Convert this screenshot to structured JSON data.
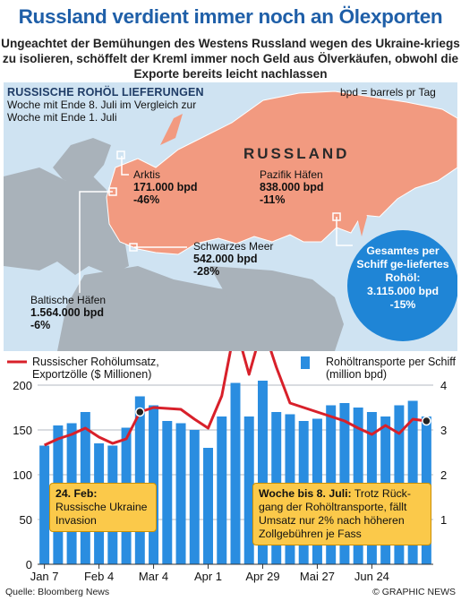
{
  "title": "Russland verdient immer noch an Ölexporten",
  "subtitle": "Ungeachtet der Bemühungen des Westens Russland wegen des Ukraine-kriegs zu isolieren, schöffelt der Kreml immer noch Geld aus Ölverkäufen, obwohl die Exporte bereits leicht nachlassen",
  "map": {
    "heading": "RUSSISCHE ROHÖL LIEFERUNGEN",
    "heading_note": "Woche mit Ende 8. Juli im Vergleich zur Woche mit Ende 1. Juli",
    "unit_note": "bpd = barrels pr Tag",
    "country_label": "RUSSLAND",
    "regions": [
      {
        "name": "Arktis",
        "value": "171.000 bpd",
        "change": "-46%"
      },
      {
        "name": "Pazifik Häfen",
        "value": "838.000 bpd",
        "change": "-11%"
      },
      {
        "name": "Schwarzes Meer",
        "value": "542.000 bpd",
        "change": "-28%"
      },
      {
        "name": "Baltische Häfen",
        "value": "1.564.000 bpd",
        "change": "-6%"
      }
    ],
    "total": {
      "label": "Gesamtes per Schiff ge-liefertes Rohöl:",
      "value": "3.115.000 bpd",
      "change": "-15%"
    },
    "colors": {
      "sea": "#cfe3f2",
      "land": "#a9b2ba",
      "russia": "#f29a80",
      "total_circle": "#1f85d6"
    }
  },
  "chart_data": {
    "type": "bar",
    "x_tick_labels": [
      "Jan 7",
      "Feb 4",
      "Mar 4",
      "Apr 1",
      "Apr 29",
      "Mai 27",
      "Jun 24"
    ],
    "left_axis": {
      "label": "Russischer Rohölumsatz, Exportzölle ($ Millionen)",
      "ticks": [
        "0",
        "50",
        "100",
        "150",
        "200"
      ],
      "ylim": [
        0,
        200
      ]
    },
    "right_axis": {
      "label": "Rohöltransporte per Schiff (million bpd)",
      "ticks": [
        "1",
        "2",
        "3",
        "4"
      ],
      "ylim": [
        0,
        4
      ]
    },
    "series": [
      {
        "name": "Rohöltransporte per Schiff (million bpd)",
        "type": "bar",
        "axis": "right",
        "color": "#2a8de0",
        "values": [
          2.65,
          3.1,
          3.15,
          3.4,
          2.7,
          2.65,
          3.05,
          3.75,
          3.55,
          3.2,
          3.15,
          3.0,
          2.6,
          3.3,
          4.05,
          3.3,
          4.1,
          3.4,
          3.35,
          3.2,
          3.25,
          3.55,
          3.6,
          3.5,
          3.4,
          3.3,
          3.55,
          3.65,
          3.3
        ]
      },
      {
        "name": "Russischer Rohölumsatz, Exportzölle ($ Millionen)",
        "type": "line",
        "axis": "left",
        "color": "#d8202a",
        "values": [
          133,
          140,
          145,
          152,
          142,
          135,
          140,
          170,
          175,
          174,
          173,
          162,
          152,
          188,
          267,
          212,
          266,
          220,
          180,
          175,
          170,
          165,
          160,
          152,
          145,
          155,
          146,
          162,
          160
        ]
      }
    ],
    "legend": "top",
    "grid": true
  },
  "annotations": [
    {
      "title": "24. Feb:",
      "text": "Russische Ukraine Invasion"
    },
    {
      "title": "Woche bis 8. Juli:",
      "text": "Trotz Rück-gang der Rohöltransporte, fällt Umsatz nur 2% nach höheren Zollgebühren je Fass"
    }
  ],
  "footer": {
    "source": "Quelle: Bloomberg News",
    "credit": "© GRAPHIC NEWS"
  }
}
